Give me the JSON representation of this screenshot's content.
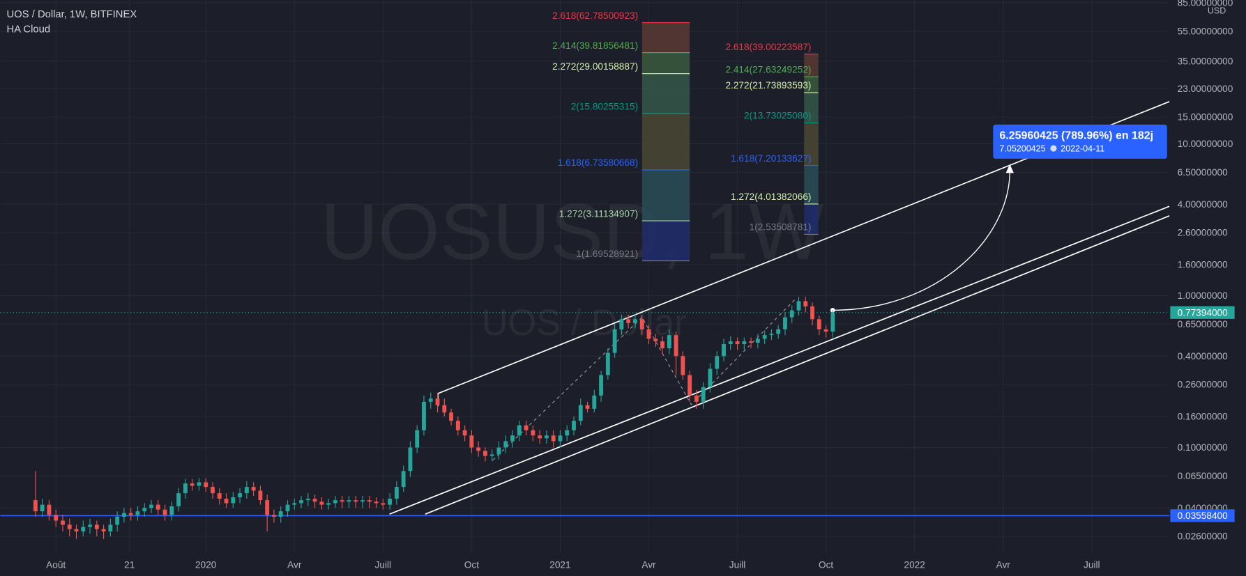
{
  "chart_data": {
    "type": "candlestick",
    "title": "UOS / Dollar, 1W, BITFINEX",
    "indicator": "HA Cloud",
    "watermark": "UOSUSD, 1W",
    "watermark_subtitle": "UOS / Dollar",
    "currency_label": "USD",
    "log_scale": true,
    "grid": true,
    "up_color": "#26a69a",
    "down_color": "#ef5350",
    "x": [
      -3,
      -2,
      -1,
      0,
      1,
      2,
      3,
      4,
      5,
      6,
      7,
      8,
      9,
      10,
      11,
      12,
      13,
      14,
      15,
      16,
      17,
      18,
      19,
      20,
      21,
      22,
      23,
      24,
      25,
      26,
      27,
      28,
      29,
      30,
      31,
      32,
      33,
      34,
      35,
      36,
      37,
      38,
      39,
      40,
      41,
      42,
      43,
      44,
      45,
      46,
      47,
      48,
      49,
      50,
      51,
      52,
      53,
      54,
      55,
      56,
      57,
      58,
      59,
      60,
      61,
      62,
      63,
      64,
      65,
      66,
      67,
      68,
      69,
      70,
      71,
      72,
      73,
      74,
      75,
      76,
      77,
      78,
      79,
      80,
      81,
      82,
      83,
      84,
      85,
      86,
      87,
      88,
      89,
      90,
      91,
      92,
      93,
      94,
      95,
      96,
      97,
      98,
      99,
      100,
      101,
      102,
      103,
      104,
      105,
      106,
      107,
      108,
      109,
      110,
      111,
      112,
      113,
      114
    ],
    "open": [
      0.045,
      0.038,
      0.042,
      0.036,
      0.033,
      0.031,
      0.029,
      0.028,
      0.03,
      0.031,
      0.029,
      0.028,
      0.031,
      0.035,
      0.037,
      0.036,
      0.038,
      0.04,
      0.042,
      0.039,
      0.036,
      0.041,
      0.05,
      0.058,
      0.056,
      0.059,
      0.055,
      0.05,
      0.046,
      0.043,
      0.047,
      0.05,
      0.055,
      0.052,
      0.045,
      0.036,
      0.035,
      0.038,
      0.042,
      0.043,
      0.045,
      0.046,
      0.044,
      0.042,
      0.043,
      0.045,
      0.044,
      0.045,
      0.044,
      0.045,
      0.044,
      0.043,
      0.042,
      0.046,
      0.055,
      0.07,
      0.1,
      0.13,
      0.2,
      0.21,
      0.19,
      0.17,
      0.15,
      0.13,
      0.12,
      0.1,
      0.095,
      0.088,
      0.09,
      0.1,
      0.11,
      0.12,
      0.14,
      0.13,
      0.12,
      0.115,
      0.12,
      0.11,
      0.12,
      0.13,
      0.15,
      0.19,
      0.18,
      0.22,
      0.3,
      0.42,
      0.6,
      0.7,
      0.66,
      0.7,
      0.6,
      0.52,
      0.5,
      0.45,
      0.55,
      0.4,
      0.3,
      0.22,
      0.2,
      0.25,
      0.33,
      0.4,
      0.48,
      0.5,
      0.48,
      0.5,
      0.49,
      0.52,
      0.55,
      0.56,
      0.6,
      0.72,
      0.8,
      0.92,
      0.85,
      0.7,
      0.6,
      0.58
    ],
    "high": [
      0.07,
      0.046,
      0.045,
      0.039,
      0.036,
      0.034,
      0.031,
      0.033,
      0.034,
      0.033,
      0.031,
      0.034,
      0.038,
      0.04,
      0.04,
      0.041,
      0.043,
      0.045,
      0.045,
      0.042,
      0.044,
      0.054,
      0.062,
      0.062,
      0.063,
      0.063,
      0.059,
      0.054,
      0.05,
      0.051,
      0.054,
      0.06,
      0.059,
      0.056,
      0.049,
      0.039,
      0.041,
      0.045,
      0.046,
      0.048,
      0.05,
      0.049,
      0.047,
      0.046,
      0.048,
      0.048,
      0.048,
      0.048,
      0.048,
      0.048,
      0.047,
      0.046,
      0.05,
      0.06,
      0.076,
      0.11,
      0.14,
      0.22,
      0.23,
      0.23,
      0.21,
      0.18,
      0.16,
      0.14,
      0.13,
      0.11,
      0.1,
      0.097,
      0.11,
      0.12,
      0.13,
      0.15,
      0.15,
      0.14,
      0.13,
      0.13,
      0.13,
      0.13,
      0.14,
      0.16,
      0.21,
      0.2,
      0.24,
      0.32,
      0.45,
      0.65,
      0.75,
      0.75,
      0.76,
      0.74,
      0.64,
      0.56,
      0.54,
      0.6,
      0.58,
      0.43,
      0.32,
      0.24,
      0.27,
      0.36,
      0.43,
      0.52,
      0.54,
      0.53,
      0.53,
      0.53,
      0.56,
      0.59,
      0.6,
      0.64,
      0.78,
      0.86,
      0.98,
      0.98,
      0.9,
      0.74,
      0.64,
      0.8
    ],
    "low": [
      0.035,
      0.035,
      0.033,
      0.03,
      0.028,
      0.026,
      0.025,
      0.026,
      0.027,
      0.026,
      0.025,
      0.026,
      0.028,
      0.032,
      0.033,
      0.033,
      0.035,
      0.037,
      0.036,
      0.033,
      0.033,
      0.038,
      0.046,
      0.052,
      0.052,
      0.051,
      0.046,
      0.042,
      0.04,
      0.04,
      0.043,
      0.046,
      0.048,
      0.042,
      0.028,
      0.032,
      0.032,
      0.035,
      0.039,
      0.04,
      0.041,
      0.04,
      0.039,
      0.039,
      0.04,
      0.04,
      0.04,
      0.04,
      0.04,
      0.04,
      0.04,
      0.039,
      0.039,
      0.042,
      0.051,
      0.064,
      0.092,
      0.12,
      0.18,
      0.17,
      0.16,
      0.14,
      0.12,
      0.11,
      0.092,
      0.087,
      0.081,
      0.081,
      0.083,
      0.092,
      0.1,
      0.11,
      0.12,
      0.11,
      0.106,
      0.106,
      0.1,
      0.1,
      0.11,
      0.12,
      0.14,
      0.17,
      0.17,
      0.2,
      0.28,
      0.39,
      0.55,
      0.61,
      0.61,
      0.55,
      0.48,
      0.46,
      0.41,
      0.41,
      0.3,
      0.28,
      0.2,
      0.18,
      0.18,
      0.23,
      0.3,
      0.37,
      0.44,
      0.44,
      0.44,
      0.45,
      0.45,
      0.48,
      0.51,
      0.52,
      0.55,
      0.66,
      0.74,
      0.78,
      0.64,
      0.55,
      0.53,
      0.53
    ],
    "close": [
      0.038,
      0.042,
      0.036,
      0.033,
      0.031,
      0.029,
      0.028,
      0.03,
      0.031,
      0.029,
      0.028,
      0.031,
      0.035,
      0.037,
      0.036,
      0.038,
      0.04,
      0.042,
      0.039,
      0.036,
      0.041,
      0.05,
      0.058,
      0.056,
      0.059,
      0.055,
      0.05,
      0.046,
      0.043,
      0.047,
      0.05,
      0.055,
      0.052,
      0.045,
      0.036,
      0.035,
      0.038,
      0.042,
      0.043,
      0.045,
      0.046,
      0.044,
      0.042,
      0.043,
      0.045,
      0.044,
      0.045,
      0.044,
      0.045,
      0.044,
      0.043,
      0.042,
      0.046,
      0.055,
      0.07,
      0.1,
      0.13,
      0.2,
      0.21,
      0.19,
      0.17,
      0.15,
      0.13,
      0.12,
      0.1,
      0.095,
      0.088,
      0.09,
      0.1,
      0.11,
      0.12,
      0.14,
      0.13,
      0.12,
      0.115,
      0.12,
      0.11,
      0.12,
      0.13,
      0.15,
      0.19,
      0.18,
      0.22,
      0.3,
      0.42,
      0.6,
      0.7,
      0.66,
      0.7,
      0.6,
      0.52,
      0.5,
      0.45,
      0.55,
      0.4,
      0.3,
      0.22,
      0.2,
      0.25,
      0.33,
      0.4,
      0.48,
      0.5,
      0.48,
      0.5,
      0.49,
      0.52,
      0.55,
      0.56,
      0.6,
      0.72,
      0.8,
      0.92,
      0.85,
      0.7,
      0.6,
      0.58,
      0.77394
    ],
    "xlim": [
      -8.16,
      163.4
    ],
    "xticks": [
      {
        "value": 0,
        "label": "Août"
      },
      {
        "value": 10.8,
        "label": "21"
      },
      {
        "value": 22,
        "label": "2020"
      },
      {
        "value": 35,
        "label": "Avr"
      },
      {
        "value": 48,
        "label": "Juill"
      },
      {
        "value": 61,
        "label": "Oct"
      },
      {
        "value": 74,
        "label": "2021"
      },
      {
        "value": 87,
        "label": "Avr"
      },
      {
        "value": 100,
        "label": "Juill"
      },
      {
        "value": 113,
        "label": "Oct"
      },
      {
        "value": 126,
        "label": "2022"
      },
      {
        "value": 139,
        "label": "Avr"
      },
      {
        "value": 152,
        "label": "Juill"
      }
    ],
    "ylim": [
      0.0202,
      88.5
    ],
    "yticks": [
      {
        "value": 85,
        "label": "85.00000000"
      },
      {
        "value": 55,
        "label": "55.00000000"
      },
      {
        "value": 35,
        "label": "35.00000000"
      },
      {
        "value": 23,
        "label": "23.00000000"
      },
      {
        "value": 15,
        "label": "15.00000000"
      },
      {
        "value": 10,
        "label": "10.00000000"
      },
      {
        "value": 6.5,
        "label": "6.50000000"
      },
      {
        "value": 4,
        "label": "4.00000000"
      },
      {
        "value": 2.6,
        "label": "2.60000000"
      },
      {
        "value": 1.6,
        "label": "1.60000000"
      },
      {
        "value": 1,
        "label": "1.00000000"
      },
      {
        "value": 0.65,
        "label": "0.65000000"
      },
      {
        "value": 0.4,
        "label": "0.40000000"
      },
      {
        "value": 0.26,
        "label": "0.26000000"
      },
      {
        "value": 0.16,
        "label": "0.16000000"
      },
      {
        "value": 0.1,
        "label": "0.10000000"
      },
      {
        "value": 0.065,
        "label": "0.06500000"
      },
      {
        "value": 0.04,
        "label": "0.04000000"
      },
      {
        "value": 0.026,
        "label": "0.02600000"
      }
    ],
    "price_lines": [
      {
        "value": 0.77394,
        "label": "0.77394000",
        "color": "#26a69a",
        "style": "dotted"
      },
      {
        "value": 0.035584,
        "label": "0.03558400",
        "color": "#2962ff",
        "style": "solid"
      }
    ],
    "fib_sets": [
      {
        "band_colors": [
          "#1f2d6b",
          "#2a4d57",
          "#4a4832",
          "#35574a",
          "#3a5a3c",
          "#5b3a35"
        ],
        "levels": [
          {
            "value": 1.69528921,
            "label": "1(1.69528921)",
            "color": "#787b86"
          },
          {
            "value": 3.11134907,
            "label": "1.272(3.11134907)",
            "color": "#a5d6a7"
          },
          {
            "value": 6.73580668,
            "label": "1.618(6.73580668)",
            "color": "#2962ff"
          },
          {
            "value": 15.80255315,
            "label": "2(15.80255315)",
            "color": "#089981"
          },
          {
            "value": 29.00158887,
            "label": "2.272(29.00158887)",
            "color": "#d4f0a8"
          },
          {
            "value": 39.81856481,
            "label": "2.414(39.81856481)",
            "color": "#4caf50"
          },
          {
            "value": 62.78500923,
            "label": "2.618(62.78500923)",
            "color": "#f23645"
          }
        ]
      },
      {
        "band_colors": [
          "#1f2d6b",
          "#2a4d57",
          "#4a4832",
          "#35574a",
          "#3a5a3c",
          "#5b3a35"
        ],
        "levels": [
          {
            "value": 2.53508781,
            "label": "1(2.53508781)",
            "color": "#787b86"
          },
          {
            "value": 4.01382066,
            "label": "1.272(4.01382066)",
            "color": "#d4f0a8"
          },
          {
            "value": 7.20133627,
            "label": "1.618(7.20133627)",
            "color": "#2962ff"
          },
          {
            "value": 13.7302508,
            "label": "2(13.73025080)",
            "color": "#089981"
          },
          {
            "value": 21.73893593,
            "label": "2.272(21.73893593)",
            "color": "#d4f0a8"
          },
          {
            "value": 27.63249252,
            "label": "2.414(27.63249252)",
            "color": "#4caf50"
          },
          {
            "value": 39.00223587,
            "label": "2.618(39.00223587)",
            "color": "#f23645"
          }
        ]
      }
    ],
    "projection": {
      "text": "6.25960425 (789.96%) en 182j",
      "price": "7.05200425",
      "date": "2022-04-11"
    }
  }
}
